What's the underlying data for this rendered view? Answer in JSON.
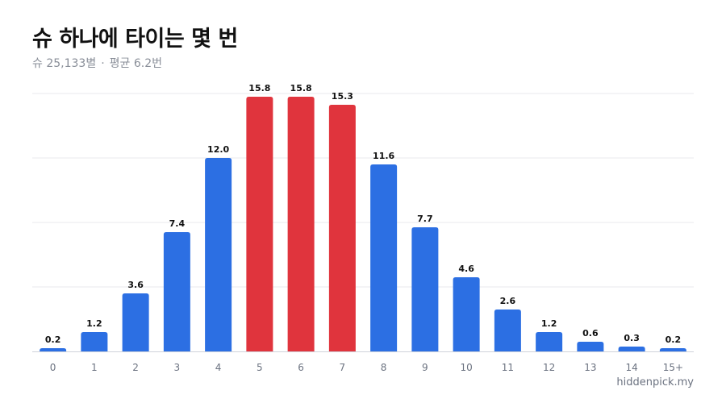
{
  "header": {
    "title": "슈 하나에 타이는 몇 번",
    "subtitle_count": "슈 25,133별",
    "subtitle_separator": "·",
    "subtitle_avg": "평균 6.2번"
  },
  "watermark": "hiddenpick.my",
  "colors": {
    "default_bar": "#2c6fe3",
    "highlight_bar": "#e0343d",
    "grid": "#e8eaee",
    "axis": "#cfd3da"
  },
  "chart_data": {
    "type": "bar",
    "categories": [
      "0",
      "1",
      "2",
      "3",
      "4",
      "5",
      "6",
      "7",
      "8",
      "9",
      "10",
      "11",
      "12",
      "13",
      "14",
      "15+"
    ],
    "values": [
      0.2,
      1.2,
      3.6,
      7.4,
      12.0,
      15.8,
      15.8,
      15.3,
      11.6,
      7.7,
      4.6,
      2.6,
      1.2,
      0.6,
      0.3,
      0.2
    ],
    "value_labels": [
      "0.2",
      "1.2",
      "3.6",
      "7.4",
      "12.0",
      "15.8",
      "15.8",
      "15.3",
      "11.6",
      "7.7",
      "4.6",
      "2.6",
      "1.2",
      "0.6",
      "0.3",
      "0.2"
    ],
    "highlighted_categories": [
      "5",
      "6",
      "7"
    ],
    "ylim": [
      0,
      16
    ],
    "grid": true,
    "legend": "none"
  }
}
